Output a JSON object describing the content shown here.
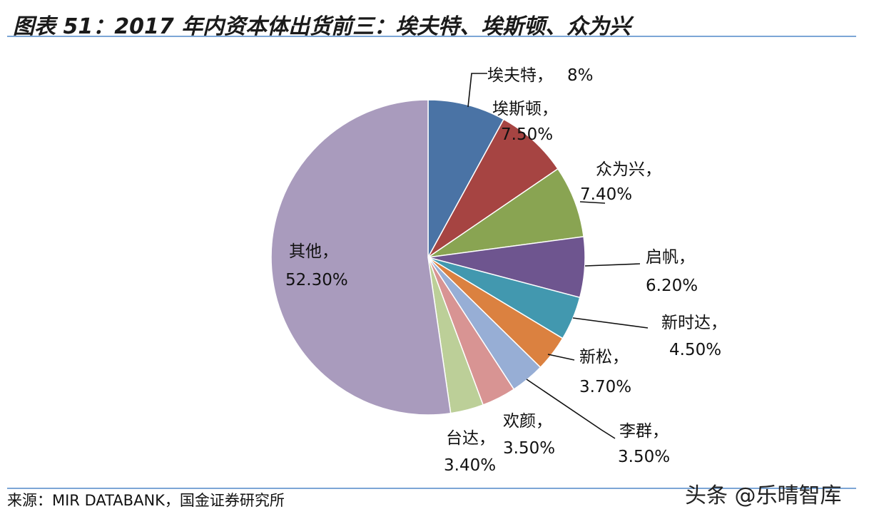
{
  "title": "图表 51：2017 年内资本体出货前三：埃夫特、埃斯顿、众为兴",
  "source": "来源：MIR DATABANK，国金证券研究所",
  "watermark": "头条 @乐晴智库",
  "chart_data": {
    "type": "pie",
    "title": "",
    "slices": [
      {
        "name": "埃夫特",
        "value": 8.0,
        "label_name": "埃夫特，",
        "label_value": "8%",
        "color": "#4a73a5"
      },
      {
        "name": "埃斯顿",
        "value": 7.5,
        "label_name": "埃斯顿，",
        "label_value": "7.50%",
        "color": "#a64442"
      },
      {
        "name": "众为兴",
        "value": 7.4,
        "label_name": "众为兴，",
        "label_value": "7.40%",
        "color": "#89a452"
      },
      {
        "name": "启帆",
        "value": 6.2,
        "label_name": "启帆，",
        "label_value": "6.20%",
        "color": "#6e558f"
      },
      {
        "name": "新时达",
        "value": 4.5,
        "label_name": "新时达，",
        "label_value": "4.50%",
        "color": "#4298af"
      },
      {
        "name": "新松",
        "value": 3.7,
        "label_name": "新松，",
        "label_value": "3.70%",
        "color": "#db8140"
      },
      {
        "name": "李群",
        "value": 3.5,
        "label_name": "李群，",
        "label_value": "3.50%",
        "color": "#97aed5"
      },
      {
        "name": "欢颜",
        "value": 3.5,
        "label_name": "欢颜，",
        "label_value": "3.50%",
        "color": "#d89493"
      },
      {
        "name": "台达",
        "value": 3.4,
        "label_name": "台达，",
        "label_value": "3.40%",
        "color": "#bccf98"
      },
      {
        "name": "其他",
        "value": 52.3,
        "label_name": "其他，",
        "label_value": "52.30%",
        "color": "#a99bbd"
      }
    ]
  }
}
